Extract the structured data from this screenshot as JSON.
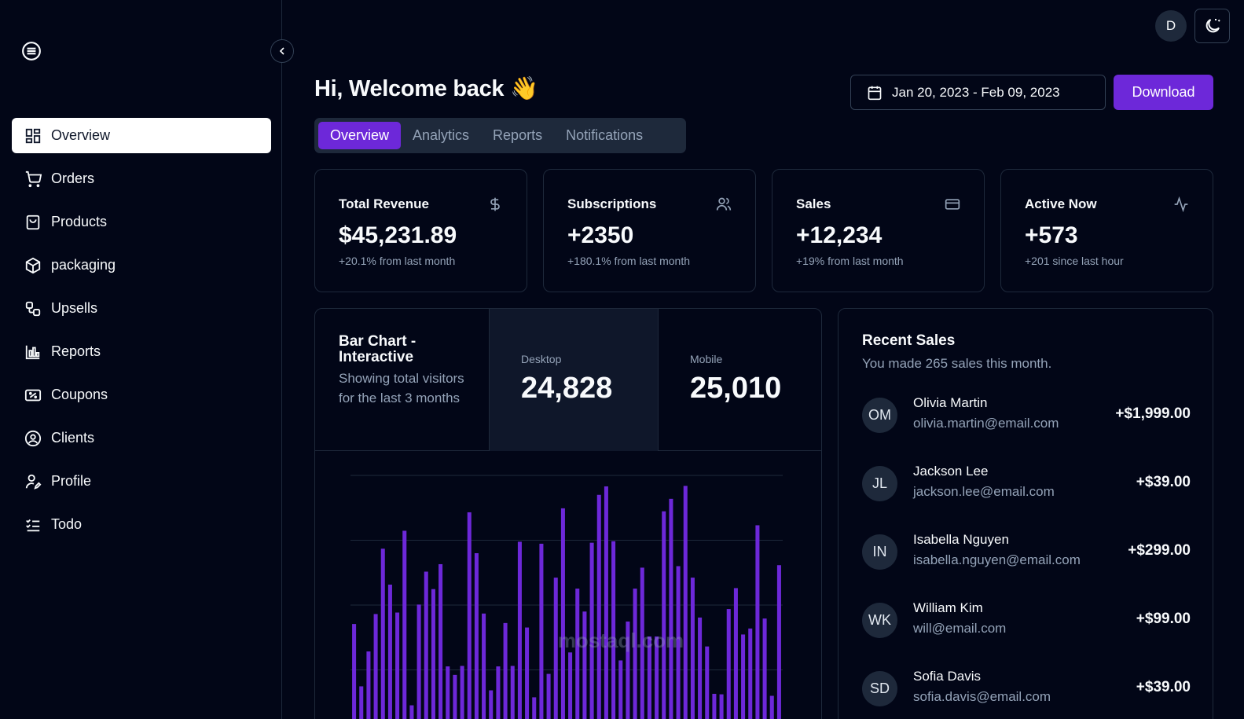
{
  "sidebar": {
    "items": [
      {
        "label": "Overview",
        "icon": "dashboard-icon",
        "active": true
      },
      {
        "label": "Orders",
        "icon": "cart-icon"
      },
      {
        "label": "Products",
        "icon": "shopping-bag-icon"
      },
      {
        "label": "packaging",
        "icon": "package-icon"
      },
      {
        "label": "Upsells",
        "icon": "workflow-icon"
      },
      {
        "label": "Reports",
        "icon": "bar-chart-icon"
      },
      {
        "label": "Coupons",
        "icon": "ticket-icon"
      },
      {
        "label": "Clients",
        "icon": "user-circle-icon"
      },
      {
        "label": "Profile",
        "icon": "user-pen-icon"
      },
      {
        "label": "Todo",
        "icon": "list-checks-icon"
      }
    ]
  },
  "topbar": {
    "avatar_initial": "D"
  },
  "header": {
    "title": "Hi, Welcome back 👋",
    "date_range": "Jan 20, 2023 - Feb 09, 2023",
    "download_label": "Download"
  },
  "tabs": [
    {
      "label": "Overview",
      "active": true
    },
    {
      "label": "Analytics"
    },
    {
      "label": "Reports"
    },
    {
      "label": "Notifications"
    }
  ],
  "stats": [
    {
      "label": "Total Revenue",
      "value": "$45,231.89",
      "sub": "+20.1% from last month",
      "icon": "dollar-icon"
    },
    {
      "label": "Subscriptions",
      "value": "+2350",
      "sub": "+180.1% from last month",
      "icon": "users-icon"
    },
    {
      "label": "Sales",
      "value": "+12,234",
      "sub": "+19% from last month",
      "icon": "credit-card-icon"
    },
    {
      "label": "Active Now",
      "value": "+573",
      "sub": "+201 since last hour",
      "icon": "activity-icon"
    }
  ],
  "chart_card": {
    "title": "Bar Chart - Interactive",
    "description": "Showing total visitors for the last 3 months",
    "desktop_label": "Desktop",
    "desktop_value": "24,828",
    "mobile_label": "Mobile",
    "mobile_value": "25,010"
  },
  "chart_data": {
    "type": "bar",
    "series": [
      {
        "values": [
          222,
          97,
          167,
          242,
          373,
          301,
          245,
          409,
          59,
          261,
          327,
          292,
          342,
          137,
          120,
          138,
          446,
          364,
          243,
          89,
          137,
          224,
          138,
          387,
          215,
          75,
          383,
          122,
          315,
          454,
          165,
          293,
          247,
          385,
          481,
          498,
          388,
          149,
          227,
          293,
          335,
          197,
          197,
          448,
          473,
          338,
          499,
          315,
          235,
          177,
          82,
          81,
          252,
          294,
          201,
          213,
          420,
          233,
          78,
          340
        ]
      }
    ],
    "ylim": [
      0,
      520
    ],
    "bar_color": "#6d28d9",
    "grid": true
  },
  "recent_sales": {
    "title": "Recent Sales",
    "subtitle": "You made 265 sales this month.",
    "rows": [
      {
        "initials": "OM",
        "name": "Olivia Martin",
        "email": "olivia.martin@email.com",
        "amount": "+$1,999.00"
      },
      {
        "initials": "JL",
        "name": "Jackson Lee",
        "email": "jackson.lee@email.com",
        "amount": "+$39.00"
      },
      {
        "initials": "IN",
        "name": "Isabella Nguyen",
        "email": "isabella.nguyen@email.com",
        "amount": "+$299.00"
      },
      {
        "initials": "WK",
        "name": "William Kim",
        "email": "will@email.com",
        "amount": "+$99.00"
      },
      {
        "initials": "SD",
        "name": "Sofia Davis",
        "email": "sofia.davis@email.com",
        "amount": "+$39.00"
      }
    ]
  },
  "watermark": "mostaql.com",
  "colors": {
    "background": "#020617",
    "accent": "#6d28d9",
    "muted_text": "#94a3b8",
    "border": "#1e293b"
  }
}
